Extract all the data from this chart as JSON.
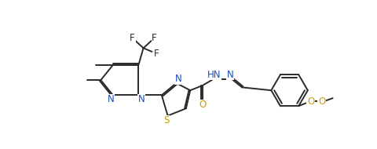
{
  "background_color": "#ffffff",
  "line_color": "#2a2a2a",
  "text_color": "#2a2a2a",
  "n_color": "#1a4fbd",
  "s_color": "#c8a000",
  "o_color": "#c8a000",
  "line_width": 1.4,
  "font_size": 8.5,
  "figsize": [
    4.81,
    1.9
  ],
  "dpi": 100,
  "xlim": [
    0,
    481
  ],
  "ylim": [
    0,
    190
  ]
}
